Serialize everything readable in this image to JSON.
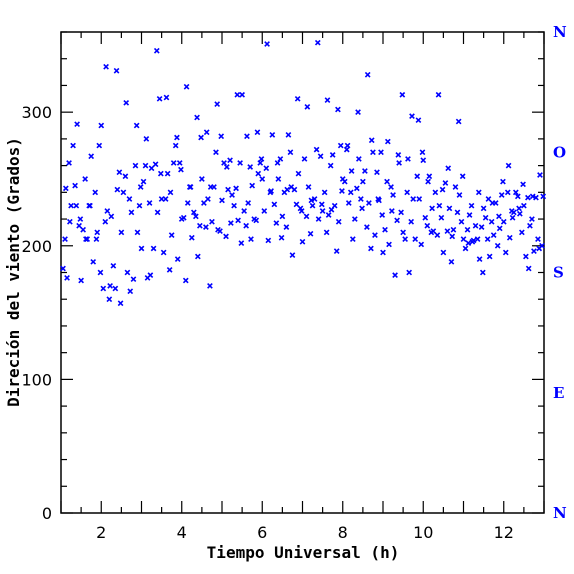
{
  "chart_data": {
    "type": "scatter",
    "xlabel": "Tiempo Universal (h)",
    "ylabel": "Direción del viento (Grados)",
    "xlim": [
      1,
      13
    ],
    "ylim": [
      0,
      360
    ],
    "x_ticks": [
      "2",
      "4",
      "6",
      "8",
      "10",
      "12"
    ],
    "y_ticks": [
      "0",
      "100",
      "200",
      "300"
    ],
    "compass_labels": [
      "N",
      "O",
      "S",
      "E",
      "N"
    ],
    "compass_values": [
      360,
      270,
      180,
      90,
      0
    ],
    "marker_color": "#0000ff",
    "marker": "x",
    "series": [
      {
        "x": [
          1.05,
          1.1,
          1.15,
          1.2,
          1.25,
          1.3,
          1.35,
          1.4,
          1.45,
          1.5,
          1.55,
          1.6,
          1.65,
          1.7,
          1.75,
          1.8,
          1.85,
          1.9,
          1.95,
          2.0,
          2.05,
          2.1,
          2.15,
          2.2,
          2.25,
          2.3,
          2.35,
          2.4,
          2.45,
          2.5,
          2.55,
          2.6,
          2.65,
          2.7,
          2.75,
          2.8,
          2.85,
          2.9,
          2.95,
          3.0,
          3.05,
          3.1,
          3.15,
          3.2,
          3.25,
          3.3,
          3.35,
          3.4,
          3.45,
          3.5,
          3.55,
          3.6,
          3.65,
          3.7,
          3.75,
          3.8,
          3.85,
          3.9,
          3.95,
          4.0,
          4.05,
          4.1,
          4.15,
          4.2,
          4.25,
          4.3,
          4.35,
          4.4,
          4.45,
          4.5,
          4.55,
          4.6,
          4.65,
          4.7,
          4.75,
          4.8,
          4.85,
          4.9,
          4.95,
          5.0,
          5.05,
          5.1,
          5.15,
          5.2,
          5.25,
          5.3,
          5.35,
          5.4,
          5.45,
          5.5,
          5.55,
          5.6,
          5.65,
          5.7,
          5.75,
          5.8,
          5.85,
          5.9,
          5.95,
          6.0,
          6.05,
          6.1,
          6.15,
          6.2,
          6.25,
          6.3,
          6.35,
          6.4,
          6.45,
          6.5,
          6.55,
          6.6,
          6.65,
          6.7,
          6.75,
          6.8,
          6.85,
          6.9,
          6.95,
          7.0,
          7.05,
          7.1,
          7.15,
          7.2,
          7.25,
          7.3,
          7.35,
          7.4,
          7.45,
          7.5,
          7.55,
          7.6,
          7.65,
          7.7,
          7.75,
          7.8,
          7.85,
          7.9,
          7.95,
          8.0,
          8.05,
          8.1,
          8.15,
          8.2,
          8.25,
          8.3,
          8.35,
          8.4,
          8.45,
          8.5,
          8.55,
          8.6,
          8.65,
          8.7,
          8.75,
          8.8,
          8.85,
          8.9,
          8.95,
          9.0,
          9.05,
          9.1,
          9.15,
          9.2,
          9.25,
          9.3,
          9.35,
          9.4,
          9.45,
          9.5,
          9.55,
          9.6,
          9.65,
          9.7,
          9.75,
          9.8,
          9.85,
          9.9,
          9.95,
          10.0,
          10.05,
          10.1,
          10.15,
          10.2,
          10.25,
          10.3,
          10.35,
          10.4,
          10.45,
          10.5,
          10.55,
          10.6,
          10.65,
          10.7,
          10.75,
          10.8,
          10.85,
          10.9,
          10.95,
          11.0,
          11.05,
          11.1,
          11.15,
          11.2,
          11.25,
          11.3,
          11.35,
          11.4,
          11.45,
          11.5,
          11.55,
          11.6,
          11.65,
          11.7,
          11.75,
          11.8,
          11.85,
          11.9,
          11.95,
          12.0,
          12.05,
          12.1,
          12.15,
          12.2,
          12.25,
          12.3,
          12.35,
          12.4,
          12.45,
          12.5,
          12.55,
          12.6,
          12.65,
          12.7,
          12.75,
          12.8,
          12.85,
          12.9,
          12.95,
          1.12,
          1.38,
          1.62,
          1.88,
          2.12,
          2.38,
          2.62,
          2.88,
          3.12,
          3.38,
          3.62,
          3.88,
          4.12,
          4.38,
          4.62,
          4.88,
          5.12,
          5.38,
          5.62,
          5.88,
          6.12,
          6.38,
          6.62,
          6.88,
          7.12,
          7.38,
          7.62,
          7.88,
          8.12,
          8.38,
          8.62,
          8.88,
          9.12,
          9.38,
          9.62,
          9.88,
          10.12,
          10.38,
          10.62,
          10.88,
          11.12,
          11.38,
          11.62,
          11.88,
          12.12,
          12.38,
          12.62,
          12.88,
          1.22,
          1.48,
          1.72,
          1.98,
          2.22,
          2.48,
          2.72,
          2.98,
          3.22,
          3.48,
          3.72,
          3.98,
          4.22,
          4.48,
          4.72,
          4.98,
          5.22,
          5.48,
          5.72,
          5.98,
          6.22,
          6.48,
          6.72,
          6.98,
          7.22,
          7.48,
          7.72,
          7.98,
          8.22,
          8.48,
          8.72,
          8.98,
          9.22,
          9.48,
          9.72,
          9.98,
          10.22,
          10.48,
          10.72,
          10.98,
          11.22,
          11.48,
          11.72,
          11.98,
          12.22,
          12.48,
          12.72,
          12.98
        ],
        "y": [
          183,
          205,
          176,
          262,
          230,
          275,
          245,
          291,
          215,
          174,
          212,
          250,
          205,
          230,
          267,
          188,
          240,
          210,
          275,
          290,
          168,
          218,
          226,
          160,
          222,
          185,
          168,
          242,
          255,
          210,
          240,
          252,
          180,
          235,
          225,
          175,
          260,
          210,
          230,
          198,
          248,
          260,
          176,
          232,
          258,
          198,
          261,
          225,
          310,
          235,
          195,
          235,
          254,
          182,
          208,
          262,
          275,
          190,
          262,
          220,
          221,
          174,
          232,
          244,
          206,
          225,
          222,
          192,
          215,
          250,
          232,
          214,
          235,
          170,
          218,
          244,
          270,
          212,
          211,
          234,
          262,
          207,
          242,
          264,
          238,
          230,
          243,
          219,
          262,
          313,
          226,
          215,
          232,
          259,
          245,
          220,
          219,
          254,
          262,
          250,
          226,
          258,
          204,
          240,
          283,
          231,
          217,
          250,
          265,
          222,
          240,
          214,
          283,
          270,
          193,
          242,
          231,
          254,
          228,
          203,
          265,
          222,
          244,
          209,
          230,
          235,
          272,
          220,
          267,
          226,
          240,
          210,
          223,
          260,
          268,
          230,
          196,
          218,
          275,
          250,
          248,
          272,
          232,
          240,
          205,
          220,
          243,
          265,
          235,
          248,
          256,
          214,
          232,
          198,
          270,
          208,
          255,
          234,
          270,
          195,
          212,
          248,
          201,
          244,
          238,
          178,
          219,
          262,
          225,
          210,
          205,
          240,
          180,
          218,
          235,
          205,
          252,
          235,
          201,
          264,
          221,
          215,
          252,
          210,
          211,
          240,
          208,
          230,
          221,
          195,
          247,
          211,
          228,
          188,
          212,
          244,
          225,
          238,
          218,
          205,
          198,
          212,
          223,
          230,
          204,
          215,
          205,
          190,
          214,
          228,
          221,
          205,
          192,
          218,
          208,
          232,
          200,
          213,
          238,
          218,
          195,
          240,
          206,
          226,
          225,
          240,
          237,
          224,
          210,
          230,
          192,
          236,
          215,
          220,
          196,
          236,
          205,
          253,
          200,
          243,
          230,
          205,
          205,
          334,
          331,
          307,
          290,
          280,
          346,
          311,
          281,
          319,
          296,
          285,
          306,
          259,
          313,
          282,
          285,
          351,
          262,
          242,
          310,
          304,
          352,
          309,
          302,
          275,
          300,
          328,
          235,
          278,
          268,
          265,
          294,
          248,
          313,
          258,
          293,
          202,
          240,
          235,
          222,
          260,
          228,
          183,
          198,
          218,
          220,
          230,
          180,
          170,
          157,
          166,
          244,
          178,
          254,
          240,
          257,
          244,
          281,
          244,
          282,
          217,
          202,
          205,
          265,
          241,
          206,
          244,
          226,
          234,
          231,
          227,
          241,
          256,
          228,
          279,
          223,
          226,
          313,
          297,
          270,
          228,
          242,
          207,
          252,
          203,
          180,
          232,
          248,
          221,
          246,
          237,
          237
        ]
      }
    ]
  }
}
